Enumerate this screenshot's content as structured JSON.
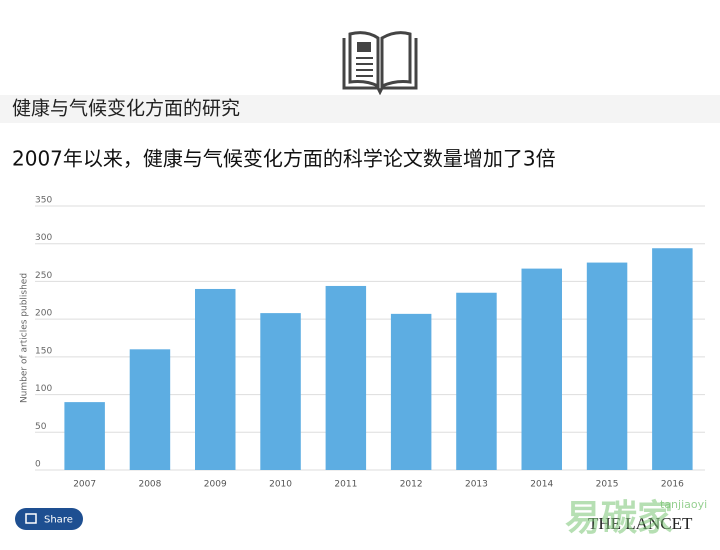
{
  "header": "健康与气候变化方面的研究",
  "chart_data": {
    "type": "bar",
    "title": "2007年以来，健康与气候变化方面的科学论文数量增加了3倍",
    "y_label": "Number of articles published",
    "categories": [
      "2007",
      "2008",
      "2009",
      "2010",
      "2011",
      "2012",
      "2013",
      "2014",
      "2015",
      "2016"
    ],
    "values": [
      90,
      160,
      240,
      208,
      244,
      207,
      235,
      267,
      275,
      294
    ],
    "color": "#5dade2",
    "ylim": [
      0,
      350
    ],
    "yticks": [
      0,
      50,
      100,
      150,
      200,
      250,
      300,
      350
    ],
    "grid": true
  },
  "share": "Share",
  "brand": "THE LANCET",
  "watermark": "易碳家",
  "watermark_sub": "tanjiaoyi"
}
